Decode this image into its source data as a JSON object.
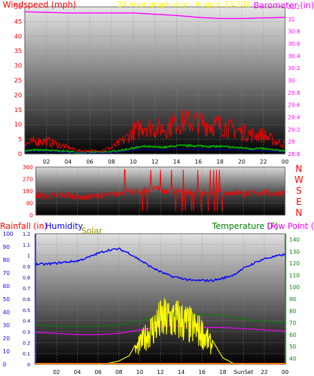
{
  "colors": {
    "wind": "#ff0000",
    "gust_dark": "#0000aa",
    "green_series": "#00aa00",
    "barometer": "#ff00ff",
    "humidity": "#0000ff",
    "temperature": "#008000",
    "dew_point": "#ff00ff",
    "solar": "#ffff00",
    "rainfall": "#ff8000",
    "title_color": "#ffff00"
  },
  "chart_data": [
    {
      "type": "line",
      "title": "24 hour graph day - August 23 202",
      "left_axis_label": "Windspeed (mph)",
      "right_axis_label": "Barometer (in)",
      "x_ticks": [
        "02",
        "04",
        "06",
        "08",
        "10",
        "12",
        "14",
        "16",
        "18",
        "20",
        "22",
        "00"
      ],
      "left_ticks": [
        "0",
        "5",
        "10",
        "15",
        "20",
        "25",
        "30",
        "35",
        "40",
        "45",
        "50"
      ],
      "right_ticks": [
        "28.8",
        "29",
        "29.2",
        "29.4",
        "29.6",
        "29.8",
        "30",
        "30.2",
        "30.4",
        "30.6",
        "30.8",
        "31",
        "31.2"
      ],
      "ylim_left": [
        0,
        50
      ],
      "ylim_right": [
        28.8,
        31.2
      ],
      "grid": true,
      "series": [
        {
          "name": "Windspeed (mph)",
          "axis": "left",
          "color_key": "wind",
          "x": [
            0,
            1,
            2,
            3,
            4,
            5,
            6,
            7,
            8,
            9,
            10,
            11,
            12,
            13,
            14,
            15,
            16,
            17,
            18,
            19,
            20,
            21,
            22,
            23,
            24
          ],
          "y": [
            3,
            4,
            4,
            3,
            2,
            1,
            1,
            1,
            2,
            4,
            7,
            9,
            8,
            8,
            10,
            10,
            10,
            9,
            9,
            8,
            7,
            6,
            6,
            4,
            3
          ]
        },
        {
          "name": "Barometer (in)",
          "axis": "right",
          "color_key": "barometer",
          "x": [
            0,
            2,
            4,
            6,
            8,
            10,
            12,
            14,
            16,
            18,
            20,
            22,
            24
          ],
          "y": [
            31.12,
            31.11,
            31.1,
            31.1,
            31.1,
            31.1,
            31.08,
            31.06,
            31.03,
            31.01,
            31.01,
            31.02,
            31.03
          ]
        }
      ]
    },
    {
      "type": "line",
      "left_ticks": [
        "0",
        "90",
        "180",
        "270",
        "360"
      ],
      "compass_labels": [
        "N",
        "W",
        "S",
        "E",
        "N"
      ],
      "ylim": [
        0,
        360
      ],
      "grid": true,
      "series": [
        {
          "name": "Wind direction",
          "color_key": "wind",
          "x": [
            0,
            1,
            2,
            3,
            4,
            5,
            6,
            7,
            8,
            9,
            10,
            11,
            12,
            13,
            14,
            15,
            16,
            17,
            18,
            19,
            20,
            21,
            22,
            23,
            24
          ],
          "y": [
            150,
            140,
            145,
            150,
            140,
            130,
            145,
            150,
            160,
            170,
            180,
            200,
            190,
            170,
            180,
            175,
            170,
            160,
            165,
            170,
            160,
            165,
            170,
            160,
            175
          ]
        }
      ]
    },
    {
      "type": "line",
      "labels": {
        "rainfall": "Rainfall (in)",
        "humidity": "Humidity",
        "solar": "Solar",
        "temperature": "Temperature (F)",
        "dew_point": "Dew Point ("
      },
      "x_ticks": [
        "02",
        "04",
        "06",
        "08",
        "10",
        "12",
        "14",
        "16",
        "18",
        "SunSet",
        "22",
        "00"
      ],
      "rain_ticks": [
        "0",
        "10",
        "20",
        "30",
        "40",
        "50",
        "60",
        "70",
        "80",
        "90",
        "100"
      ],
      "humidity_ticks": [
        "0",
        "0.1",
        "0.2",
        "0.3",
        "0.4",
        "0.5",
        "0.6",
        "0.7",
        "0.8",
        "0.9",
        "1",
        "1.1",
        "1.2"
      ],
      "temp_ticks": [
        "40",
        "50",
        "60",
        "70",
        "80",
        "90",
        "100",
        "110",
        "120",
        "130",
        "140"
      ],
      "ylim_humidity": [
        0,
        1.2
      ],
      "ylim_temp": [
        35,
        145
      ],
      "grid": true,
      "series": [
        {
          "name": "Humidity",
          "axis": "humidity",
          "color_key": "humidity",
          "x": [
            0,
            1,
            2,
            3,
            4,
            5,
            6,
            7,
            8,
            9,
            10,
            11,
            12,
            13,
            14,
            15,
            16,
            17,
            18,
            19,
            20,
            21,
            22,
            23,
            24
          ],
          "y": [
            0.92,
            0.92,
            0.93,
            0.94,
            0.95,
            0.98,
            1.02,
            1.05,
            1.06,
            1.02,
            0.96,
            0.9,
            0.85,
            0.81,
            0.79,
            0.77,
            0.77,
            0.77,
            0.79,
            0.82,
            0.88,
            0.93,
            0.97,
            0.99,
            1.01
          ]
        },
        {
          "name": "Temperature (F)",
          "axis": "temp",
          "color_key": "temperature",
          "x": [
            0,
            2,
            4,
            6,
            8,
            10,
            12,
            14,
            16,
            18,
            20,
            22,
            24
          ],
          "y": [
            68,
            67,
            67,
            67,
            68,
            72,
            76,
            77,
            77,
            76,
            73,
            71,
            70
          ]
        },
        {
          "name": "Dew Point",
          "axis": "temp",
          "color_key": "dew_point",
          "x": [
            0,
            2,
            4,
            6,
            8,
            10,
            12,
            14,
            16,
            18,
            20,
            22,
            24
          ],
          "y": [
            62,
            61,
            60,
            60,
            61,
            64,
            67,
            67,
            66,
            66,
            65,
            64,
            63
          ]
        },
        {
          "name": "Solar",
          "axis": "humidity",
          "color_key": "solar",
          "x": [
            6,
            7,
            8,
            9,
            10,
            11,
            12,
            13,
            14,
            15,
            16,
            17,
            18,
            19,
            20
          ],
          "y": [
            0,
            0.01,
            0.03,
            0.08,
            0.25,
            0.42,
            0.55,
            0.58,
            0.55,
            0.48,
            0.4,
            0.22,
            0.06,
            0.01,
            0
          ]
        },
        {
          "name": "Rainfall (in)",
          "axis": "rain",
          "color_key": "rainfall",
          "x": [
            0,
            24
          ],
          "y": [
            0,
            0
          ]
        }
      ]
    }
  ]
}
